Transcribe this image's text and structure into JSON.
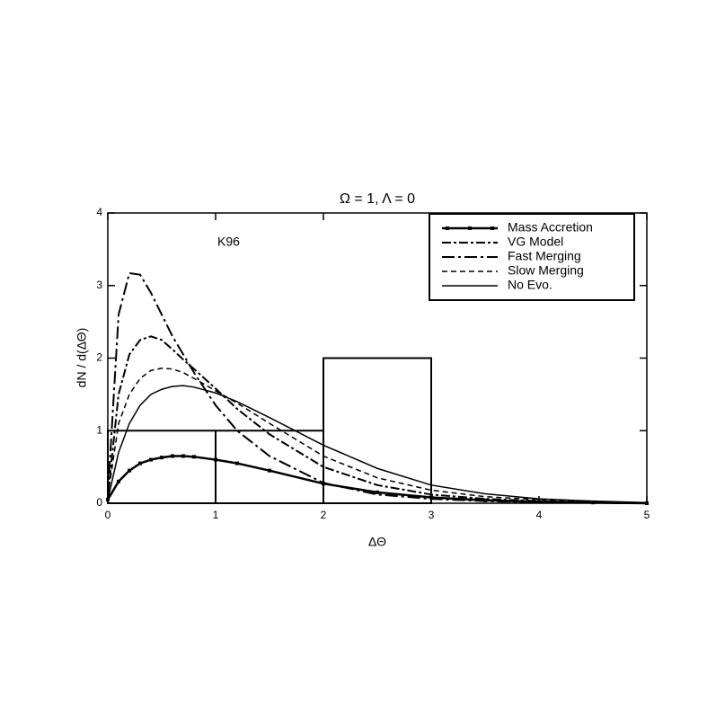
{
  "chart_data": {
    "type": "line",
    "title": "Ω = 1, Λ = 0",
    "x_label": "ΔΘ",
    "y_label": "dN / d(ΔΘ)",
    "annotation": "K96",
    "xlim": [
      0,
      5
    ],
    "ylim": [
      0,
      4
    ],
    "xticks": [
      0,
      1,
      2,
      3,
      4,
      5
    ],
    "yticks": [
      0,
      1,
      2,
      3,
      4
    ],
    "legend": "upper right",
    "x": [
      0,
      0.1,
      0.2,
      0.3,
      0.4,
      0.5,
      0.6,
      0.7,
      0.8,
      1.0,
      1.2,
      1.5,
      2.0,
      2.5,
      3.0,
      3.5,
      4.0,
      4.5,
      5.0
    ],
    "series": [
      {
        "name": "Mass Accretion",
        "color": "#000000",
        "dash": "none",
        "width": 2.5,
        "marker": true,
        "values": [
          0.05,
          0.3,
          0.45,
          0.55,
          0.6,
          0.63,
          0.65,
          0.65,
          0.64,
          0.6,
          0.55,
          0.45,
          0.27,
          0.15,
          0.08,
          0.04,
          0.02,
          0.01,
          0.0
        ]
      },
      {
        "name": "VG Model",
        "color": "#000000",
        "dash": "10,3,3,3",
        "width": 2,
        "marker": false,
        "values": [
          0.1,
          1.5,
          2.05,
          2.25,
          2.3,
          2.25,
          2.12,
          1.98,
          1.85,
          1.58,
          1.3,
          0.95,
          0.5,
          0.25,
          0.12,
          0.06,
          0.03,
          0.01,
          0.0
        ]
      },
      {
        "name": "Fast Merging",
        "color": "#000000",
        "dash": "14,4,3,4",
        "width": 2,
        "marker": false,
        "values": [
          0.1,
          2.6,
          3.17,
          3.15,
          2.9,
          2.6,
          2.3,
          2.05,
          1.8,
          1.35,
          1.0,
          0.65,
          0.28,
          0.12,
          0.06,
          0.03,
          0.01,
          0.005,
          0.0
        ]
      },
      {
        "name": "Slow Merging",
        "color": "#000000",
        "dash": "6,4",
        "width": 1.5,
        "marker": false,
        "values": [
          0.1,
          1.1,
          1.5,
          1.72,
          1.83,
          1.86,
          1.85,
          1.8,
          1.72,
          1.55,
          1.38,
          1.1,
          0.65,
          0.35,
          0.18,
          0.09,
          0.05,
          0.02,
          0.0
        ]
      },
      {
        "name": "No Evo.",
        "color": "#000000",
        "dash": "none",
        "width": 1.5,
        "marker": false,
        "values": [
          0.05,
          0.7,
          1.1,
          1.35,
          1.5,
          1.57,
          1.61,
          1.62,
          1.6,
          1.52,
          1.4,
          1.18,
          0.8,
          0.48,
          0.25,
          0.13,
          0.06,
          0.03,
          0.01
        ]
      }
    ],
    "histogram": {
      "bins": [
        0,
        1,
        2,
        3
      ],
      "counts": [
        1,
        1,
        2
      ],
      "color": "#000000"
    }
  }
}
